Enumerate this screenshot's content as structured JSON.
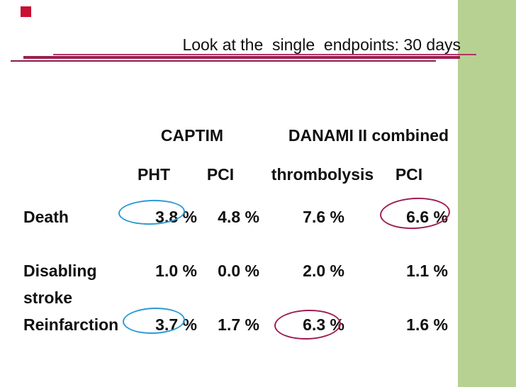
{
  "title": "Look at the  single  endpoints: 30 days",
  "colors": {
    "accent_bar_green": "#b7d192",
    "underline_maroon": "#9c1f4e",
    "highlight_blue": "#2e9bd4",
    "highlight_red": "#a01d52",
    "marker_red": "#c81133",
    "text": "#101010"
  },
  "table": {
    "group_headers": [
      {
        "label": "CAPTIM"
      },
      {
        "label": "DANAMI II combined"
      }
    ],
    "col_headers": [
      "PHT",
      "PCI",
      "thrombolysis",
      "PCI"
    ],
    "rows": [
      {
        "label": "Death",
        "values": [
          "3.8 %",
          "4.8 %",
          "7.6 %",
          "6.6 %"
        ],
        "highlights": [
          "blue",
          null,
          null,
          "red"
        ]
      },
      {
        "label": "Disabling",
        "label2": "stroke",
        "values": [
          "1.0 %",
          "0.0 %",
          "2.0 %",
          "1.1 %"
        ],
        "highlights": [
          null,
          null,
          null,
          null
        ]
      },
      {
        "label": "Reinfarction",
        "values": [
          "3.7 %",
          "1.7 %",
          "6.3 %",
          "1.6 %"
        ],
        "highlights": [
          "blue",
          null,
          "red",
          null
        ]
      }
    ]
  }
}
